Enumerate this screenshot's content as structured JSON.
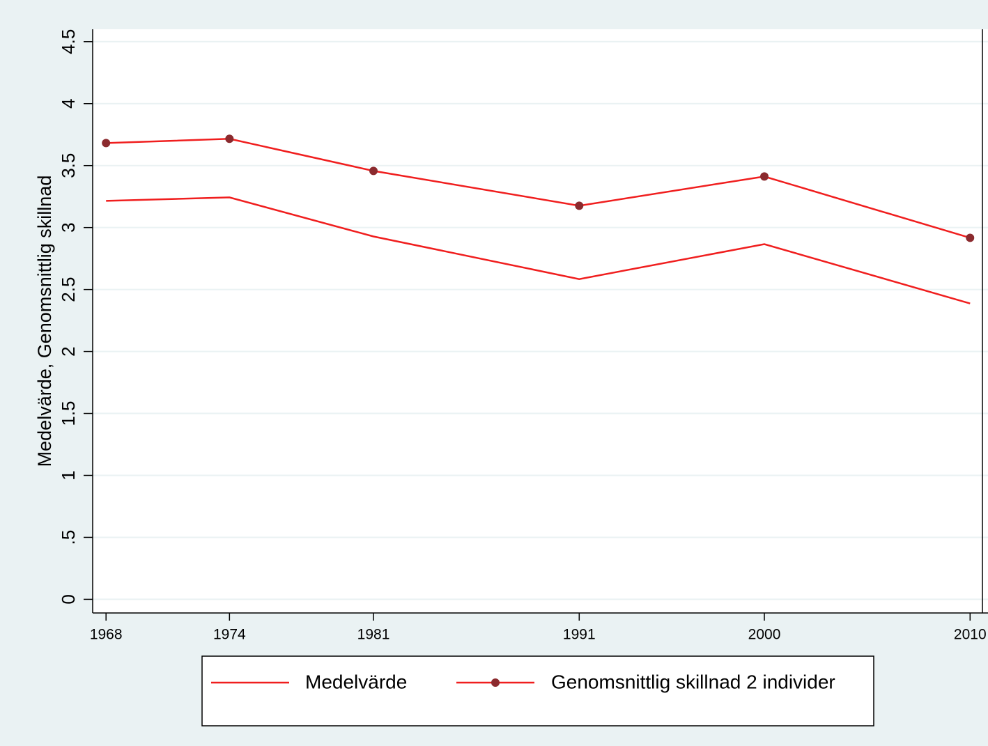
{
  "chart_data": {
    "type": "line",
    "ylabel": "Medelvärde, Genomsnittlig skillnad",
    "x": [
      1968,
      1974,
      1981,
      1991,
      2000,
      2010
    ],
    "series": [
      {
        "name": "Medelvärde",
        "color": "#f01e1e",
        "values": [
          3.215,
          3.243,
          2.928,
          2.584,
          2.866,
          2.387
        ]
      },
      {
        "name": "Genomsnittlig skillnad 2 individer",
        "color": "#f01e1e",
        "marker_color": "#8b2a2e",
        "values": [
          3.682,
          3.716,
          3.457,
          3.176,
          3.412,
          2.917
        ]
      }
    ],
    "xlim": [
      1967.35,
      2010.6
    ],
    "xticks": [
      1968,
      1974,
      1981,
      1991,
      2000,
      2010
    ],
    "ylim": [
      -0.11,
      4.6
    ],
    "yticks": [
      0,
      {
        "value": 0.5,
        "label": ".5"
      },
      1,
      1.5,
      2,
      2.5,
      3,
      3.5,
      4,
      4.5
    ],
    "grid": true
  }
}
